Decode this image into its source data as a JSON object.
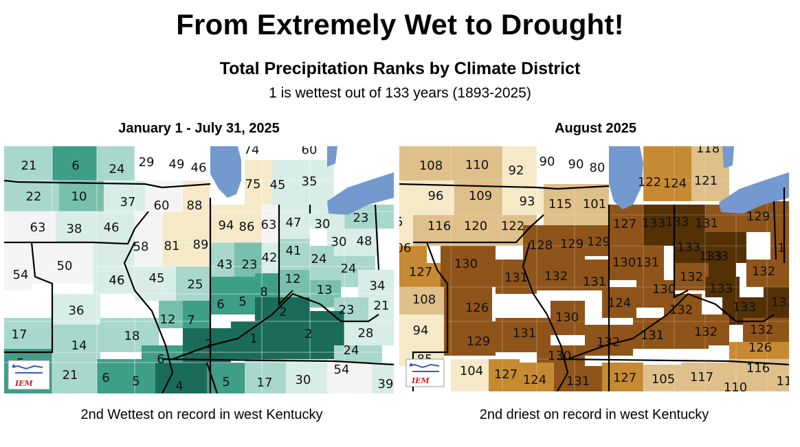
{
  "title": "From Extremely Wet to Drought!",
  "subtitle": "Total Precipitation Ranks by Climate District",
  "note": "1 is wettest out of 133 years (1893-2025)",
  "left_panel": {
    "title": "January 1 - July 31, 2025",
    "caption": "2nd Wettest on record in west Kentucky",
    "logo_text": "IEM",
    "ranks": [
      {
        "id": "l1",
        "value": "21",
        "fill": "#a8d7cb"
      },
      {
        "id": "l2",
        "value": "6",
        "fill": "#3f9e88"
      },
      {
        "id": "l3",
        "value": "24",
        "fill": "#a8d7cb"
      },
      {
        "id": "l4",
        "value": "29",
        "fill": "#ffffff"
      },
      {
        "id": "l5",
        "value": "49",
        "fill": "#ffffff"
      },
      {
        "id": "l6",
        "value": "46",
        "fill": "#ffffff"
      },
      {
        "id": "l7",
        "value": "74",
        "fill": "#ffffff"
      },
      {
        "id": "l8",
        "value": "60",
        "fill": "#ffffff"
      },
      {
        "id": "l9",
        "value": "22",
        "fill": "#a8d7cb"
      },
      {
        "id": "l10",
        "value": "10",
        "fill": "#78c0ad"
      },
      {
        "id": "l11",
        "value": "37",
        "fill": "#d7ede6"
      },
      {
        "id": "l12",
        "value": "60",
        "fill": "#f4f4f4"
      },
      {
        "id": "l13",
        "value": "88",
        "fill": "#f5e9c8"
      },
      {
        "id": "l14",
        "value": "75",
        "fill": "#f5e9c8"
      },
      {
        "id": "l15",
        "value": "45",
        "fill": "#d7ede6"
      },
      {
        "id": "l16",
        "value": "35",
        "fill": "#d7ede6"
      },
      {
        "id": "l17",
        "value": "63",
        "fill": "#f4f4f4"
      },
      {
        "id": "l18",
        "value": "38",
        "fill": "#d7ede6"
      },
      {
        "id": "l19",
        "value": "46",
        "fill": "#d7ede6"
      },
      {
        "id": "l20",
        "value": "58",
        "fill": "#f4f4f4"
      },
      {
        "id": "l21",
        "value": "81",
        "fill": "#f5e9c8"
      },
      {
        "id": "l22",
        "value": "89",
        "fill": "#f5e9c8"
      },
      {
        "id": "l23",
        "value": "94",
        "fill": "#f5e9c8"
      },
      {
        "id": "l24",
        "value": "86",
        "fill": "#f5e9c8"
      },
      {
        "id": "l25",
        "value": "63",
        "fill": "#f4f4f4"
      },
      {
        "id": "l26",
        "value": "47",
        "fill": "#d7ede6"
      },
      {
        "id": "l27",
        "value": "30",
        "fill": "#d7ede6"
      },
      {
        "id": "l28",
        "value": "23",
        "fill": "#a8d7cb"
      },
      {
        "id": "l29",
        "value": "50",
        "fill": "#f4f4f4"
      },
      {
        "id": "l30",
        "value": "54",
        "fill": "#f4f4f4"
      },
      {
        "id": "l31",
        "value": "46",
        "fill": "#d7ede6"
      },
      {
        "id": "l32",
        "value": "45",
        "fill": "#d7ede6"
      },
      {
        "id": "l33",
        "value": "43",
        "fill": "#a8d7cb"
      },
      {
        "id": "l34",
        "value": "23",
        "fill": "#78c0ad"
      },
      {
        "id": "l35",
        "value": "42",
        "fill": "#d7ede6"
      },
      {
        "id": "l36",
        "value": "41",
        "fill": "#a8d7cb"
      },
      {
        "id": "l37",
        "value": "30",
        "fill": "#d7ede6"
      },
      {
        "id": "l38",
        "value": "48",
        "fill": "#d7ede6"
      },
      {
        "id": "l39",
        "value": "24",
        "fill": "#a8d7cb"
      },
      {
        "id": "l40",
        "value": "24",
        "fill": "#a8d7cb"
      },
      {
        "id": "l41",
        "value": "46",
        "fill": "#d7ede6"
      },
      {
        "id": "l42",
        "value": "25",
        "fill": "#a8d7cb"
      },
      {
        "id": "l43",
        "value": "12",
        "fill": "#78c0ad"
      },
      {
        "id": "l44",
        "value": "13",
        "fill": "#78c0ad"
      },
      {
        "id": "l45",
        "value": "34",
        "fill": "#d7ede6"
      },
      {
        "id": "l46",
        "value": "36",
        "fill": "#d7ede6"
      },
      {
        "id": "l47",
        "value": "6",
        "fill": "#3f9e88"
      },
      {
        "id": "l48",
        "value": "5",
        "fill": "#3f9e88"
      },
      {
        "id": "l49",
        "value": "8",
        "fill": "#3f9e88"
      },
      {
        "id": "l50",
        "value": "21",
        "fill": "#d7ede6"
      },
      {
        "id": "l51",
        "value": "23",
        "fill": "#a8d7cb"
      },
      {
        "id": "l52",
        "value": "12",
        "fill": "#78c0ad"
      },
      {
        "id": "l53",
        "value": "7",
        "fill": "#3f9e88"
      },
      {
        "id": "l54",
        "value": "2",
        "fill": "#1b6b5a"
      },
      {
        "id": "l55",
        "value": "17",
        "fill": "#a8d7cb"
      },
      {
        "id": "l56",
        "value": "18",
        "fill": "#a8d7cb"
      },
      {
        "id": "l57",
        "value": "2",
        "fill": "#1b6b5a"
      },
      {
        "id": "l58",
        "value": "1",
        "fill": "#1b6b5a"
      },
      {
        "id": "l59",
        "value": "2",
        "fill": "#1b6b5a"
      },
      {
        "id": "l60",
        "value": "28",
        "fill": "#d7ede6"
      },
      {
        "id": "l61",
        "value": "14",
        "fill": "#a8d7cb"
      },
      {
        "id": "l62",
        "value": "6",
        "fill": "#3f9e88"
      },
      {
        "id": "l63",
        "value": "24",
        "fill": "#a8d7cb"
      },
      {
        "id": "l64",
        "value": "5",
        "fill": "#3f9e88"
      },
      {
        "id": "l65",
        "value": "21",
        "fill": "#a8d7cb"
      },
      {
        "id": "l66",
        "value": "6",
        "fill": "#3f9e88"
      },
      {
        "id": "l67",
        "value": "5",
        "fill": "#3f9e88"
      },
      {
        "id": "l68",
        "value": "4",
        "fill": "#1b6b5a"
      },
      {
        "id": "l69",
        "value": "5",
        "fill": "#3f9e88"
      },
      {
        "id": "l70",
        "value": "17",
        "fill": "#a8d7cb"
      },
      {
        "id": "l71",
        "value": "30",
        "fill": "#d7ede6"
      },
      {
        "id": "l72",
        "value": "54",
        "fill": "#f4f4f4"
      },
      {
        "id": "l73",
        "value": "39",
        "fill": "#d7ede6"
      }
    ]
  },
  "right_panel": {
    "title": "August 2025",
    "caption": "2nd driest on record in west Kentucky",
    "logo_text": "IEM",
    "ranks": [
      {
        "id": "r1",
        "value": "108",
        "fill": "#dfc08a"
      },
      {
        "id": "r2",
        "value": "110",
        "fill": "#dfc08a"
      },
      {
        "id": "r3",
        "value": "92",
        "fill": "#f5e9c8"
      },
      {
        "id": "r4",
        "value": "90",
        "fill": "#ffffff"
      },
      {
        "id": "r5",
        "value": "90",
        "fill": "#ffffff"
      },
      {
        "id": "r6",
        "value": "80",
        "fill": "#ffffff"
      },
      {
        "id": "r7",
        "value": "118",
        "fill": "#dfc08a"
      },
      {
        "id": "r8",
        "value": "96",
        "fill": "#f5e9c8"
      },
      {
        "id": "r9",
        "value": "109",
        "fill": "#dfc08a"
      },
      {
        "id": "r10",
        "value": "93",
        "fill": "#f5e9c8"
      },
      {
        "id": "r11",
        "value": "115",
        "fill": "#dfc08a"
      },
      {
        "id": "r12",
        "value": "101",
        "fill": "#dfc08a"
      },
      {
        "id": "r13",
        "value": "122",
        "fill": "#c68a32"
      },
      {
        "id": "r14",
        "value": "124",
        "fill": "#c68a32"
      },
      {
        "id": "r15",
        "value": "121",
        "fill": "#dfc08a"
      },
      {
        "id": "r16",
        "value": "5",
        "fill": "#f5e9c8"
      },
      {
        "id": "r17",
        "value": "116",
        "fill": "#dfc08a"
      },
      {
        "id": "r18",
        "value": "120",
        "fill": "#dfc08a"
      },
      {
        "id": "r19",
        "value": "122",
        "fill": "#dfc08a"
      },
      {
        "id": "r20",
        "value": "127",
        "fill": "#8f5419"
      },
      {
        "id": "r21",
        "value": "133",
        "fill": "#543005"
      },
      {
        "id": "r22",
        "value": "133",
        "fill": "#543005"
      },
      {
        "id": "r23",
        "value": "131",
        "fill": "#8f5419"
      },
      {
        "id": "r24",
        "value": "129",
        "fill": "#8f5419"
      },
      {
        "id": "r25",
        "value": "06",
        "fill": "#c68a32"
      },
      {
        "id": "r26",
        "value": "128",
        "fill": "#8f5419"
      },
      {
        "id": "r27",
        "value": "129",
        "fill": "#8f5419"
      },
      {
        "id": "r28",
        "value": "129",
        "fill": "#8f5419"
      },
      {
        "id": "r29",
        "value": "133",
        "fill": "#543005"
      },
      {
        "id": "r30",
        "value": "133",
        "fill": "#543005"
      },
      {
        "id": "r31",
        "value": "1",
        "fill": "#8f5419"
      },
      {
        "id": "r32",
        "value": "127",
        "fill": "#c68a32"
      },
      {
        "id": "r33",
        "value": "130",
        "fill": "#8f5419"
      },
      {
        "id": "r34",
        "value": "130",
        "fill": "#8f5419"
      },
      {
        "id": "r35",
        "value": "131",
        "fill": "#8f5419"
      },
      {
        "id": "r36",
        "value": "133",
        "fill": "#543005"
      },
      {
        "id": "r37",
        "value": "108",
        "fill": "#dfc08a"
      },
      {
        "id": "r38",
        "value": "131",
        "fill": "#8f5419"
      },
      {
        "id": "r39",
        "value": "132",
        "fill": "#8f5419"
      },
      {
        "id": "r40",
        "value": "131",
        "fill": "#8f5419"
      },
      {
        "id": "r41",
        "value": "132",
        "fill": "#8f5419"
      },
      {
        "id": "r42",
        "value": "133",
        "fill": "#543005"
      },
      {
        "id": "r43",
        "value": "132",
        "fill": "#8f5419"
      },
      {
        "id": "r44",
        "value": "126",
        "fill": "#8f5419"
      },
      {
        "id": "r45",
        "value": "124",
        "fill": "#8f5419"
      },
      {
        "id": "r46",
        "value": "130",
        "fill": "#8f5419"
      },
      {
        "id": "r47",
        "value": "133",
        "fill": "#543005"
      },
      {
        "id": "r48",
        "value": "133",
        "fill": "#543005"
      },
      {
        "id": "r49",
        "value": "94",
        "fill": "#f5e9c8"
      },
      {
        "id": "r50",
        "value": "130",
        "fill": "#8f5419"
      },
      {
        "id": "r51",
        "value": "132",
        "fill": "#8f5419"
      },
      {
        "id": "r52",
        "value": "131",
        "fill": "#8f5419"
      },
      {
        "id": "r53",
        "value": "129",
        "fill": "#8f5419"
      },
      {
        "id": "r54",
        "value": "131",
        "fill": "#8f5419"
      },
      {
        "id": "r55",
        "value": "132",
        "fill": "#8f5419"
      },
      {
        "id": "r56",
        "value": "131",
        "fill": "#8f5419"
      },
      {
        "id": "r57",
        "value": "132",
        "fill": "#8f5419"
      },
      {
        "id": "r58",
        "value": "132",
        "fill": "#8f5419"
      },
      {
        "id": "r59",
        "value": "126",
        "fill": "#c68a32"
      },
      {
        "id": "r60",
        "value": "85",
        "fill": "#f5e9c8"
      },
      {
        "id": "r61",
        "value": "130",
        "fill": "#8f5419"
      },
      {
        "id": "r62",
        "value": "104",
        "fill": "#f5e9c8"
      },
      {
        "id": "r63",
        "value": "127",
        "fill": "#c68a32"
      },
      {
        "id": "r64",
        "value": "124",
        "fill": "#c68a32"
      },
      {
        "id": "r65",
        "value": "131",
        "fill": "#8f5419"
      },
      {
        "id": "r66",
        "value": "127",
        "fill": "#c68a32"
      },
      {
        "id": "r67",
        "value": "105",
        "fill": "#dfc08a"
      },
      {
        "id": "r68",
        "value": "117",
        "fill": "#dfc08a"
      },
      {
        "id": "r69",
        "value": "116",
        "fill": "#dfc08a"
      },
      {
        "id": "r70",
        "value": "110",
        "fill": "#dfc08a"
      },
      {
        "id": "r71",
        "value": "11",
        "fill": "#dfc08a"
      }
    ]
  }
}
